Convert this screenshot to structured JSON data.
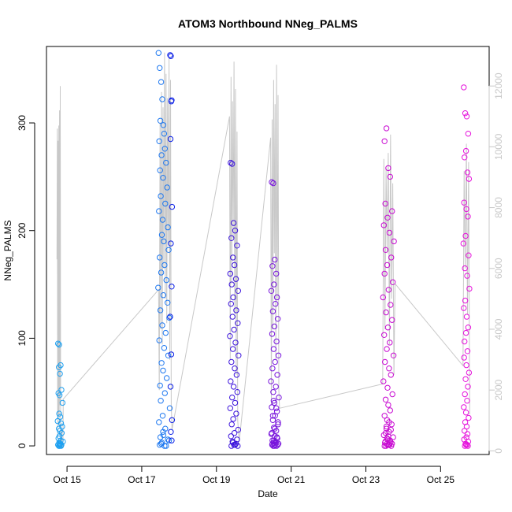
{
  "chart_data": {
    "type": "scatter",
    "title": "ATOM3 Northbound NNeg_PALMS",
    "xlabel": "Date",
    "ylabel": "NNeg_PALMS",
    "xlim": [
      14.45,
      26.3
    ],
    "ylim": [
      -8,
      371
    ],
    "y2lim": [
      -120,
      13300
    ],
    "x_ticks": [
      {
        "value": 15,
        "label": "Oct 15"
      },
      {
        "value": 17,
        "label": "Oct 17"
      },
      {
        "value": 19,
        "label": "Oct 19"
      },
      {
        "value": 21,
        "label": "Oct 21"
      },
      {
        "value": 23,
        "label": "Oct 23"
      },
      {
        "value": 25,
        "label": "Oct 25"
      }
    ],
    "y_ticks": [
      0,
      100,
      200,
      300
    ],
    "y2_ticks": [
      0,
      2000,
      4000,
      6000,
      8000,
      10000,
      12000
    ],
    "axis_colors": {
      "frame": "#000000",
      "right_axis": "#c8c8c8",
      "grey_trace": "#c8c8c8"
    },
    "series_points": {
      "name": "NNeg_PALMS",
      "flights": [
        {
          "color": "#1ea0f0",
          "x": [
            14.76,
            14.79,
            14.83,
            14.78,
            14.81,
            14.85,
            14.77,
            14.8,
            14.88,
            14.79,
            14.82,
            14.75,
            14.84,
            14.87,
            14.78,
            14.81,
            14.86,
            14.8,
            14.77,
            14.83,
            14.89,
            14.79,
            14.82,
            14.76,
            14.85,
            14.8,
            14.78,
            14.84,
            14.81,
            14.79
          ],
          "y": [
            95,
            94,
            75,
            73,
            67,
            52,
            49,
            47,
            40,
            30,
            27,
            23,
            21,
            18,
            16,
            14,
            12,
            9,
            7,
            5,
            4,
            3,
            2,
            1,
            1,
            0,
            0,
            0,
            1,
            2
          ]
        },
        {
          "color": "#1e78f0",
          "x": [
            17.45,
            17.48,
            17.52,
            17.55,
            17.5,
            17.58,
            17.6,
            17.47,
            17.62,
            17.53,
            17.65,
            17.49,
            17.57,
            17.68,
            17.51,
            17.63,
            17.46,
            17.56,
            17.7,
            17.54,
            17.59,
            17.72,
            17.48,
            17.61,
            17.52,
            17.66,
            17.44,
            17.58,
            17.69,
            17.5,
            17.74,
            17.55,
            17.64,
            17.47,
            17.6,
            17.71,
            17.53,
            17.57,
            17.67,
            17.49,
            17.62,
            17.51,
            17.75,
            17.56,
            17.46,
            17.63,
            17.58,
            17.7,
            17.54,
            17.48,
            17.61,
            17.65,
            17.52,
            17.73,
            17.5,
            17.57
          ],
          "y": [
            365,
            351,
            338,
            322,
            302,
            298,
            290,
            283,
            276,
            270,
            263,
            256,
            249,
            240,
            232,
            225,
            218,
            210,
            203,
            196,
            190,
            182,
            175,
            168,
            161,
            154,
            147,
            140,
            133,
            126,
            119,
            112,
            105,
            98,
            91,
            84,
            77,
            70,
            63,
            56,
            49,
            42,
            35,
            28,
            22,
            16,
            10,
            6,
            3,
            1,
            0,
            0,
            2,
            5,
            8,
            13
          ]
        },
        {
          "color": "#0a1ee6",
          "x": [
            17.76,
            17.78,
            17.8,
            17.79,
            17.77,
            17.81,
            17.78,
            17.8,
            17.76,
            17.79,
            17.77,
            17.81,
            17.78,
            17.8
          ],
          "y": [
            363,
            362,
            321,
            320,
            285,
            222,
            188,
            148,
            120,
            85,
            55,
            24,
            13,
            5
          ]
        },
        {
          "color": "#3c14dc",
          "x": [
            19.38,
            19.42,
            19.46,
            19.5,
            19.4,
            19.55,
            19.44,
            19.48,
            19.37,
            19.52,
            19.41,
            19.58,
            19.45,
            19.39,
            19.53,
            19.43,
            19.57,
            19.47,
            19.36,
            19.51,
            19.44,
            19.59,
            19.4,
            19.49,
            19.54,
            19.38,
            19.46,
            19.56,
            19.42,
            19.5,
            19.37,
            19.53,
            19.45,
            19.41,
            19.58,
            19.48,
            19.39,
            19.55,
            19.43,
            19.52,
            19.47,
            19.57,
            19.4,
            19.5,
            19.44
          ],
          "y": [
            263,
            262,
            207,
            200,
            193,
            186,
            175,
            168,
            160,
            155,
            150,
            144,
            138,
            132,
            126,
            120,
            114,
            108,
            102,
            96,
            90,
            84,
            78,
            72,
            66,
            60,
            55,
            50,
            45,
            40,
            35,
            30,
            25,
            20,
            15,
            12,
            9,
            6,
            4,
            2,
            1,
            0,
            0,
            1,
            3
          ]
        },
        {
          "color": "#7814dc",
          "x": [
            20.48,
            20.52,
            20.56,
            20.5,
            20.6,
            20.54,
            20.47,
            20.62,
            20.58,
            20.51,
            20.64,
            20.55,
            20.49,
            20.61,
            20.53,
            20.66,
            20.57,
            20.5,
            20.63,
            20.46,
            20.59,
            20.52,
            20.67,
            20.55,
            20.48,
            20.62,
            20.57,
            20.51,
            20.65,
            20.54,
            20.6,
            20.47,
            20.56,
            20.63,
            20.5,
            20.58,
            20.53,
            20.66,
            20.49,
            20.61,
            20.55,
            20.52,
            20.64,
            20.57,
            20.5,
            20.59,
            20.54,
            20.62,
            20.48,
            20.56,
            20.65,
            20.51,
            20.6,
            20.53
          ],
          "y": [
            245,
            244,
            173,
            167,
            160,
            150,
            144,
            138,
            132,
            125,
            118,
            111,
            104,
            97,
            90,
            84,
            78,
            72,
            66,
            60,
            55,
            50,
            45,
            40,
            36,
            32,
            28,
            24,
            20,
            17,
            14,
            11,
            9,
            7,
            5,
            4,
            3,
            2,
            1,
            0,
            0,
            0,
            1,
            1,
            2,
            3,
            5,
            8,
            12,
            16,
            22,
            28,
            35,
            42
          ]
        },
        {
          "color": "#c80ad2",
          "x": [
            23.5,
            23.55,
            23.6,
            23.65,
            23.52,
            23.7,
            23.58,
            23.48,
            23.63,
            23.75,
            23.53,
            23.68,
            23.57,
            23.5,
            23.72,
            23.61,
            23.46,
            23.66,
            23.54,
            23.7,
            23.59,
            23.49,
            23.64,
            23.56,
            23.74,
            23.51,
            23.62,
            23.67,
            23.47,
            23.58,
            23.71,
            23.53,
            23.6,
            23.65,
            23.5,
            23.57,
            23.69,
            23.55,
            23.62,
            23.48,
            23.73,
            23.59,
            23.52,
            23.66,
            23.56,
            23.61,
            23.5,
            23.68,
            23.54,
            23.63,
            23.58,
            23.7,
            23.51,
            23.65,
            23.57,
            23.6,
            23.53,
            23.67,
            23.55,
            23.62
          ],
          "y": [
            283,
            295,
            258,
            250,
            225,
            218,
            212,
            205,
            198,
            190,
            182,
            175,
            168,
            160,
            152,
            145,
            138,
            131,
            124,
            117,
            110,
            103,
            96,
            90,
            84,
            78,
            72,
            66,
            60,
            54,
            48,
            43,
            38,
            33,
            28,
            24,
            20,
            16,
            13,
            10,
            8,
            6,
            4,
            3,
            2,
            1,
            0,
            0,
            0,
            1,
            1,
            2,
            3,
            5,
            7,
            9,
            12,
            15,
            18,
            22
          ]
        },
        {
          "color": "#e614dc",
          "x": [
            25.62,
            25.66,
            25.7,
            25.74,
            25.68,
            25.64,
            25.72,
            25.76,
            25.63,
            25.69,
            25.73,
            25.67,
            25.61,
            25.75,
            25.65,
            25.71,
            25.77,
            25.66,
            25.62,
            25.7,
            25.74,
            25.68,
            25.64,
            25.72,
            25.63,
            25.69,
            25.76,
            25.67,
            25.73,
            25.65,
            25.71,
            25.62,
            25.68,
            25.75,
            25.66,
            25.7,
            25.64,
            25.72,
            25.69,
            25.63,
            25.74,
            25.67,
            25.71,
            25.65,
            25.73,
            25.68
          ],
          "y": [
            333,
            309,
            306,
            290,
            274,
            268,
            254,
            248,
            226,
            220,
            213,
            195,
            188,
            177,
            165,
            158,
            146,
            135,
            128,
            120,
            110,
            105,
            97,
            88,
            82,
            75,
            68,
            62,
            55,
            48,
            42,
            36,
            31,
            26,
            22,
            18,
            14,
            11,
            8,
            6,
            4,
            2,
            1,
            0,
            0,
            1
          ]
        }
      ]
    },
    "series_grey_trace": {
      "name": "right-axis trace",
      "x": [
        14.73,
        14.74,
        14.75,
        14.76,
        14.77,
        14.78,
        14.79,
        14.8,
        14.81,
        14.82,
        14.83,
        14.84,
        14.85,
        14.86,
        14.87,
        14.88,
        14.89,
        14.9,
        17.45,
        17.47,
        17.49,
        17.51,
        17.53,
        17.55,
        17.57,
        17.59,
        17.61,
        17.63,
        17.65,
        17.67,
        17.69,
        17.71,
        17.73,
        17.75,
        17.77,
        17.79,
        17.81,
        19.35,
        19.37,
        19.39,
        19.41,
        19.43,
        19.45,
        19.47,
        19.49,
        19.51,
        19.53,
        19.55,
        19.57,
        19.59,
        19.61,
        20.45,
        20.47,
        20.49,
        20.51,
        20.53,
        20.55,
        20.57,
        20.59,
        20.61,
        20.63,
        20.65,
        20.67,
        20.69,
        23.45,
        23.48,
        23.51,
        23.54,
        23.57,
        23.6,
        23.63,
        23.66,
        23.69,
        23.72,
        23.75,
        23.78,
        25.6,
        25.63,
        25.66,
        25.69,
        25.72,
        25.75,
        25.78
      ],
      "y": [
        6300,
        10600,
        400,
        10200,
        1200,
        10700,
        800,
        11200,
        1500,
        12000,
        300,
        900,
        200,
        600,
        100,
        300,
        150,
        1700,
        5300,
        2000,
        10800,
        4000,
        11800,
        3500,
        11300,
        6000,
        13100,
        5000,
        12400,
        4200,
        11600,
        6800,
        12900,
        3000,
        12200,
        1500,
        700,
        11000,
        3000,
        12300,
        5500,
        11500,
        7000,
        12800,
        4500,
        11900,
        2500,
        10500,
        1000,
        600,
        300,
        10300,
        1500,
        10900,
        4000,
        12200,
        6500,
        11400,
        3000,
        12700,
        5000,
        11700,
        2000,
        1400,
        2200,
        9600,
        4000,
        9300,
        6500,
        9800,
        3500,
        10400,
        5000,
        8800,
        2500,
        5500,
        2800,
        9200,
        6000,
        10100,
        4500,
        9500,
        1200
      ]
    }
  }
}
